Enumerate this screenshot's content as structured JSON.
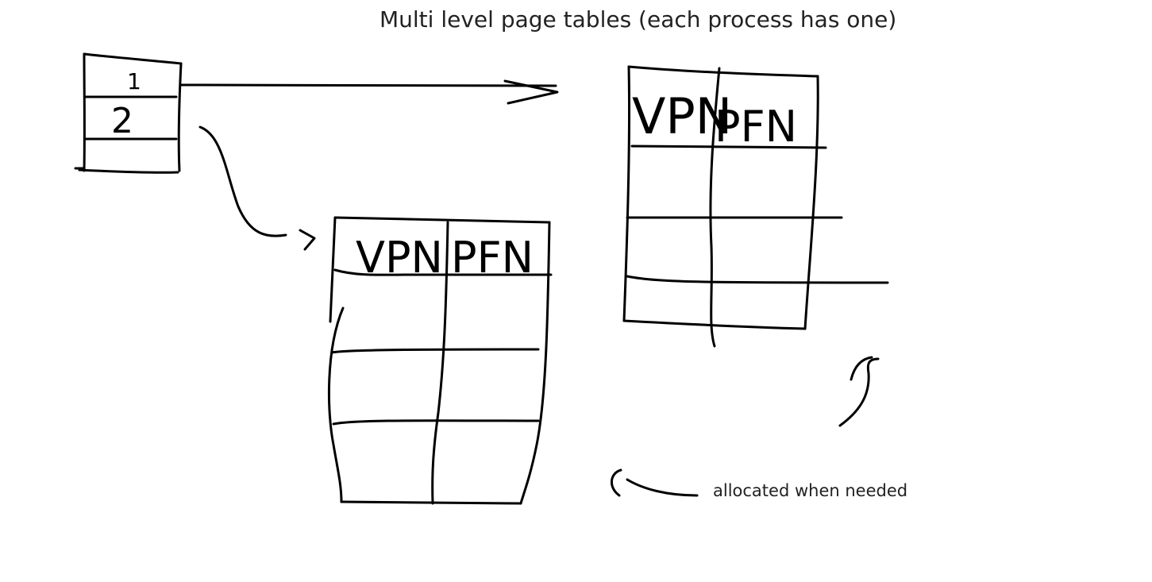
{
  "diagram": {
    "title": "Multi level page tables (each process has one)",
    "annotation": "allocated when needed",
    "directory": {
      "entries": [
        "1",
        "2",
        ""
      ]
    },
    "table_left": {
      "col1": "VPN",
      "col2": "PFN"
    },
    "table_right": {
      "col1": "VPN",
      "col2": "PFN"
    }
  }
}
